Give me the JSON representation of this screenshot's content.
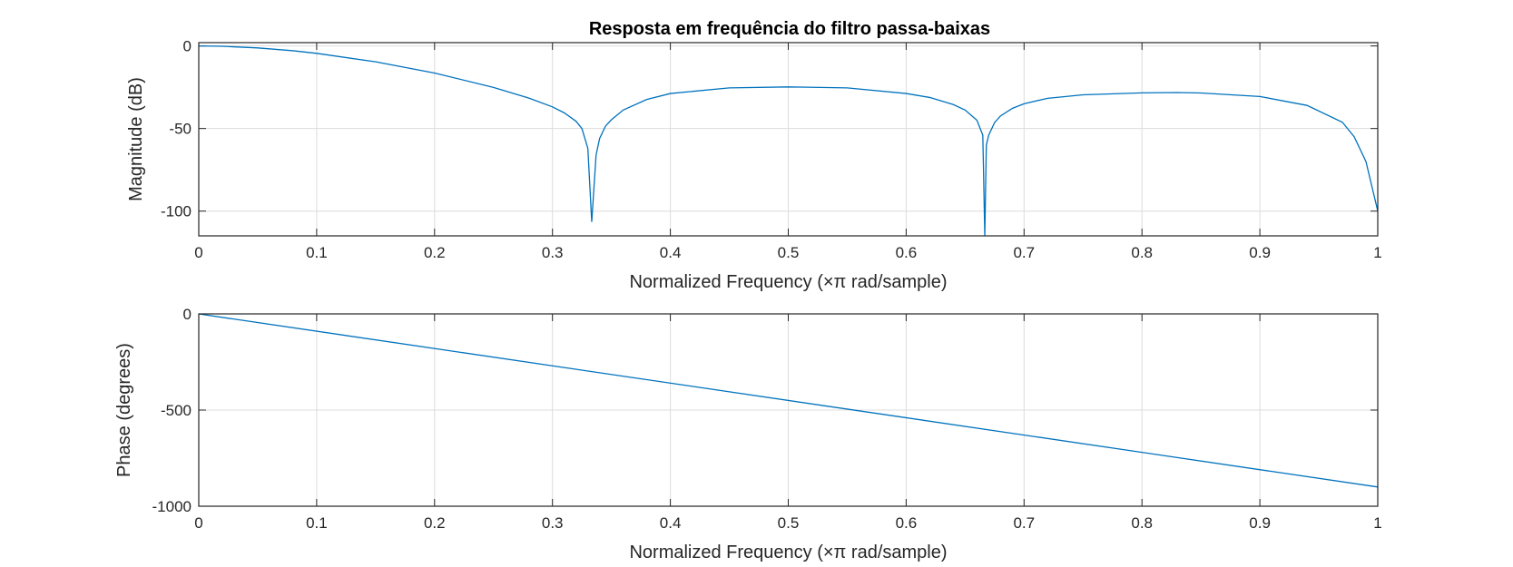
{
  "figure": {
    "title": "Resposta em frequência do filtro passa-baixas"
  },
  "colors": {
    "line": "#0072BD",
    "background": "#ffffff",
    "axes": "#262626",
    "grid": "#dcdcdc"
  },
  "chart_data": [
    {
      "type": "line",
      "title": "Resposta em frequência do filtro passa-baixas",
      "xlabel": "Normalized Frequency  (×π rad/sample)",
      "ylabel": "Magnitude (dB)",
      "xlim": [
        0,
        1
      ],
      "ylim": [
        -115,
        2
      ],
      "xticks": [
        0,
        0.1,
        0.2,
        0.3,
        0.4,
        0.5,
        0.6,
        0.7,
        0.8,
        0.9,
        1
      ],
      "xtick_labels": [
        "0",
        "0.1",
        "0.2",
        "0.3",
        "0.4",
        "0.5",
        "0.6",
        "0.7",
        "0.8",
        "0.9",
        "1"
      ],
      "yticks": [
        0,
        -50,
        -100
      ],
      "ytick_labels": [
        "0",
        "-50",
        "-100"
      ],
      "grid": true,
      "series": [
        {
          "x": [
            0,
            0.02,
            0.05,
            0.08,
            0.1,
            0.15,
            0.2,
            0.25,
            0.28,
            0.3,
            0.31,
            0.32,
            0.325,
            0.33,
            0.3333,
            0.337,
            0.34,
            0.345,
            0.35,
            0.36,
            0.38,
            0.4,
            0.45,
            0.5,
            0.55,
            0.6,
            0.62,
            0.64,
            0.65,
            0.66,
            0.665,
            0.6667,
            0.668,
            0.67,
            0.675,
            0.68,
            0.69,
            0.7,
            0.72,
            0.75,
            0.8,
            0.83,
            0.85,
            0.9,
            0.94,
            0.97,
            0.98,
            0.99,
            0.995,
            1
          ],
          "values": [
            0,
            -0.2,
            -1.2,
            -2.9,
            -4.5,
            -9.6,
            -16.4,
            -25.1,
            -31.6,
            -36.9,
            -40.5,
            -45.6,
            -50,
            -62,
            -106.5,
            -66,
            -56,
            -48.5,
            -44.7,
            -38.8,
            -32.4,
            -28.8,
            -25.4,
            -24.8,
            -25.4,
            -28.8,
            -31.2,
            -35.5,
            -38.8,
            -45,
            -54,
            -115,
            -60,
            -54,
            -46.4,
            -42.4,
            -37.8,
            -35,
            -31.7,
            -29.6,
            -28.4,
            -28.2,
            -28.5,
            -30.6,
            -36,
            -46.2,
            -55,
            -70,
            -85,
            -100
          ]
        }
      ]
    },
    {
      "type": "line",
      "xlabel": "Normalized Frequency  (×π rad/sample)",
      "ylabel": "Phase (degrees)",
      "xlim": [
        0,
        1
      ],
      "ylim": [
        -1000,
        0
      ],
      "xticks": [
        0,
        0.1,
        0.2,
        0.3,
        0.4,
        0.5,
        0.6,
        0.7,
        0.8,
        0.9,
        1
      ],
      "xtick_labels": [
        "0",
        "0.1",
        "0.2",
        "0.3",
        "0.4",
        "0.5",
        "0.6",
        "0.7",
        "0.8",
        "0.9",
        "1"
      ],
      "yticks": [
        0,
        -500,
        -1000
      ],
      "ytick_labels": [
        "0",
        "-500",
        "-1000"
      ],
      "grid": true,
      "series": [
        {
          "x": [
            0,
            1
          ],
          "values": [
            0,
            -900
          ]
        }
      ]
    }
  ]
}
